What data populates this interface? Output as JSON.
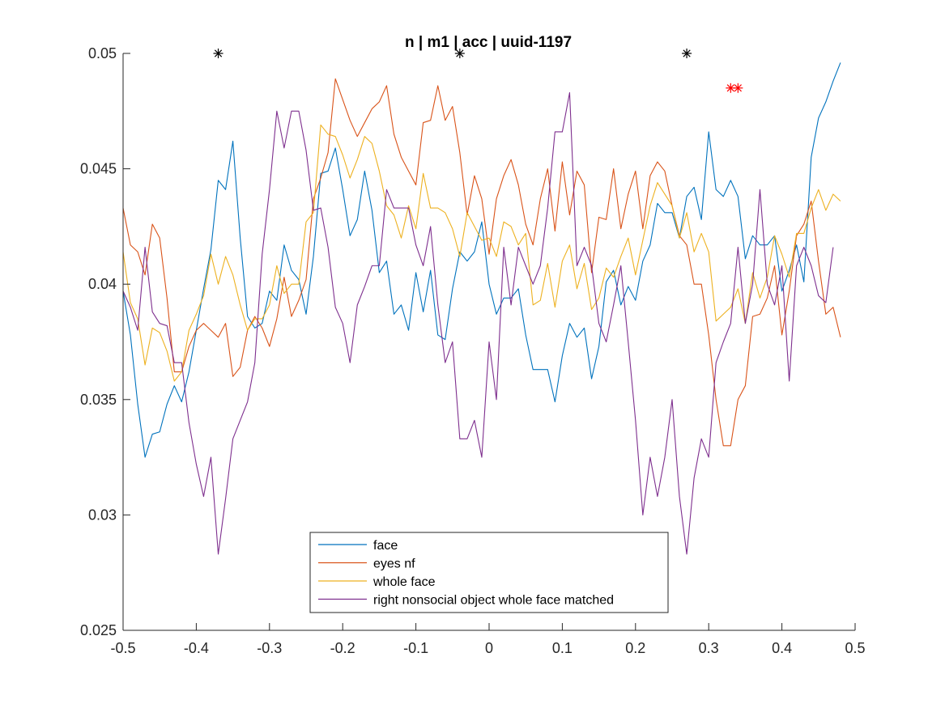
{
  "chart_data": {
    "type": "line",
    "title": "n | m1 | acc | uuid-1197",
    "xlabel": "",
    "ylabel": "",
    "xlim": [
      -0.5,
      0.5
    ],
    "ylim": [
      0.025,
      0.05
    ],
    "xticks": [
      -0.5,
      -0.4,
      -0.3,
      -0.2,
      -0.1,
      0,
      0.1,
      0.2,
      0.3,
      0.4,
      0.5
    ],
    "xtick_labels": [
      "-0.5",
      "-0.4",
      "-0.3",
      "-0.2",
      "-0.1",
      "0",
      "0.1",
      "0.2",
      "0.3",
      "0.4",
      "0.5"
    ],
    "yticks": [
      0.025,
      0.03,
      0.035,
      0.04,
      0.045,
      0.05
    ],
    "ytick_labels": [
      "0.025",
      "0.03",
      "0.035",
      "0.04",
      "0.045",
      "0.05"
    ],
    "grid": false,
    "legend_position": "bottom-center",
    "x_start": -0.5,
    "x_step": 0.01,
    "series": [
      {
        "name": "face",
        "color": "#0072BD",
        "values": [
          0.0397,
          0.0378,
          0.0348,
          0.0325,
          0.0335,
          0.0336,
          0.0348,
          0.0356,
          0.0349,
          0.0362,
          0.038,
          0.0398,
          0.0415,
          0.0445,
          0.0441,
          0.0462,
          0.042,
          0.0386,
          0.0381,
          0.0383,
          0.0397,
          0.0393,
          0.0417,
          0.0406,
          0.0402,
          0.0387,
          0.0412,
          0.0448,
          0.0449,
          0.0459,
          0.0441,
          0.0421,
          0.0428,
          0.0449,
          0.0432,
          0.0405,
          0.041,
          0.0387,
          0.0391,
          0.038,
          0.0405,
          0.0388,
          0.0406,
          0.0378,
          0.0376,
          0.0398,
          0.0414,
          0.041,
          0.0414,
          0.0427,
          0.04,
          0.0387,
          0.0394,
          0.0394,
          0.0398,
          0.0378,
          0.0363,
          0.0363,
          0.0363,
          0.0349,
          0.0369,
          0.0383,
          0.0377,
          0.0381,
          0.0359,
          0.0373,
          0.0401,
          0.0406,
          0.0391,
          0.0399,
          0.0393,
          0.041,
          0.0417,
          0.0435,
          0.0431,
          0.0431,
          0.042,
          0.0438,
          0.0442,
          0.0428,
          0.0466,
          0.0441,
          0.0438,
          0.0445,
          0.0438,
          0.0411,
          0.0421,
          0.0417,
          0.0417,
          0.0421,
          0.0397,
          0.0406,
          0.0417,
          0.0401,
          0.0455,
          0.0472,
          0.0479,
          0.0488,
          0.0496
        ]
      },
      {
        "name": "eyes nf",
        "color": "#D95319",
        "values": [
          0.0433,
          0.0417,
          0.0414,
          0.0404,
          0.0426,
          0.042,
          0.0394,
          0.0362,
          0.0362,
          0.0373,
          0.038,
          0.0383,
          0.038,
          0.0377,
          0.0383,
          0.036,
          0.0364,
          0.038,
          0.0386,
          0.0381,
          0.0373,
          0.0385,
          0.0403,
          0.0386,
          0.0393,
          0.0402,
          0.0437,
          0.0446,
          0.0457,
          0.0489,
          0.048,
          0.0471,
          0.0464,
          0.047,
          0.0476,
          0.0479,
          0.0486,
          0.0465,
          0.0455,
          0.0449,
          0.0443,
          0.047,
          0.0471,
          0.0486,
          0.0471,
          0.0477,
          0.0457,
          0.043,
          0.0447,
          0.0437,
          0.0413,
          0.0437,
          0.0447,
          0.0454,
          0.0443,
          0.0426,
          0.0417,
          0.0437,
          0.045,
          0.0423,
          0.0453,
          0.043,
          0.0449,
          0.0443,
          0.0405,
          0.0429,
          0.0428,
          0.045,
          0.0424,
          0.0439,
          0.0449,
          0.0424,
          0.0447,
          0.0453,
          0.0449,
          0.0434,
          0.0421,
          0.0417,
          0.04,
          0.04,
          0.0378,
          0.035,
          0.033,
          0.033,
          0.035,
          0.0356,
          0.0386,
          0.0387,
          0.0394,
          0.0408,
          0.0378,
          0.0397,
          0.0421,
          0.0426,
          0.0436,
          0.041,
          0.0387,
          0.039,
          0.0377
        ]
      },
      {
        "name": "whole face",
        "color": "#EDB120",
        "values": [
          0.0414,
          0.0392,
          0.0385,
          0.0365,
          0.0381,
          0.0379,
          0.0371,
          0.0358,
          0.0362,
          0.038,
          0.0387,
          0.0395,
          0.0413,
          0.04,
          0.0412,
          0.0404,
          0.0391,
          0.038,
          0.0385,
          0.0385,
          0.0391,
          0.0408,
          0.0396,
          0.04,
          0.04,
          0.0427,
          0.0431,
          0.0469,
          0.0465,
          0.0464,
          0.0456,
          0.0446,
          0.0454,
          0.0464,
          0.0461,
          0.0449,
          0.0434,
          0.043,
          0.042,
          0.0434,
          0.0424,
          0.0448,
          0.0433,
          0.0433,
          0.0431,
          0.0424,
          0.0412,
          0.0431,
          0.0425,
          0.0419,
          0.042,
          0.0412,
          0.0427,
          0.0425,
          0.0417,
          0.0422,
          0.0391,
          0.0393,
          0.0409,
          0.039,
          0.041,
          0.0417,
          0.0398,
          0.0409,
          0.0389,
          0.0394,
          0.0407,
          0.0403,
          0.0412,
          0.042,
          0.0404,
          0.0419,
          0.0434,
          0.0444,
          0.0439,
          0.0434,
          0.042,
          0.0431,
          0.0414,
          0.0422,
          0.0414,
          0.0384,
          0.0387,
          0.039,
          0.0398,
          0.0383,
          0.0405,
          0.0394,
          0.0403,
          0.0421,
          0.0413,
          0.0403,
          0.0422,
          0.0422,
          0.0433,
          0.0441,
          0.0432,
          0.0439,
          0.0436
        ]
      },
      {
        "name": "right nonsocial object whole face matched",
        "color": "#7E2F8E",
        "values": [
          0.0397,
          0.039,
          0.038,
          0.0416,
          0.0388,
          0.0383,
          0.0382,
          0.0366,
          0.0366,
          0.034,
          0.0322,
          0.0308,
          0.0325,
          0.0283,
          0.0307,
          0.0333,
          0.0341,
          0.0349,
          0.0366,
          0.0413,
          0.0441,
          0.0475,
          0.0459,
          0.0475,
          0.0475,
          0.0458,
          0.0432,
          0.0433,
          0.0416,
          0.039,
          0.0383,
          0.0366,
          0.0391,
          0.0399,
          0.0408,
          0.0408,
          0.0441,
          0.0433,
          0.0433,
          0.0433,
          0.0417,
          0.0408,
          0.0425,
          0.0391,
          0.0366,
          0.0375,
          0.0333,
          0.0333,
          0.0341,
          0.0325,
          0.0375,
          0.035,
          0.0416,
          0.0391,
          0.0416,
          0.0408,
          0.04,
          0.0408,
          0.0433,
          0.0466,
          0.0466,
          0.0483,
          0.0408,
          0.0416,
          0.0408,
          0.0383,
          0.0375,
          0.0391,
          0.0408,
          0.0375,
          0.0341,
          0.03,
          0.0325,
          0.0308,
          0.0325,
          0.035,
          0.0308,
          0.0283,
          0.0316,
          0.0333,
          0.0325,
          0.0366,
          0.0375,
          0.0383,
          0.0416,
          0.0383,
          0.04,
          0.0441,
          0.04,
          0.0391,
          0.0408,
          0.0358,
          0.0408,
          0.0416,
          0.0408,
          0.0395,
          0.0392,
          0.0416
        ]
      }
    ],
    "markers": [
      {
        "x": -0.37,
        "y": 0.05,
        "color": "#000000"
      },
      {
        "x": -0.04,
        "y": 0.05,
        "color": "#000000"
      },
      {
        "x": 0.27,
        "y": 0.05,
        "color": "#000000"
      },
      {
        "x": 0.33,
        "y": 0.0485,
        "color": "#FF0000"
      },
      {
        "x": 0.34,
        "y": 0.0485,
        "color": "#FF0000"
      }
    ]
  }
}
